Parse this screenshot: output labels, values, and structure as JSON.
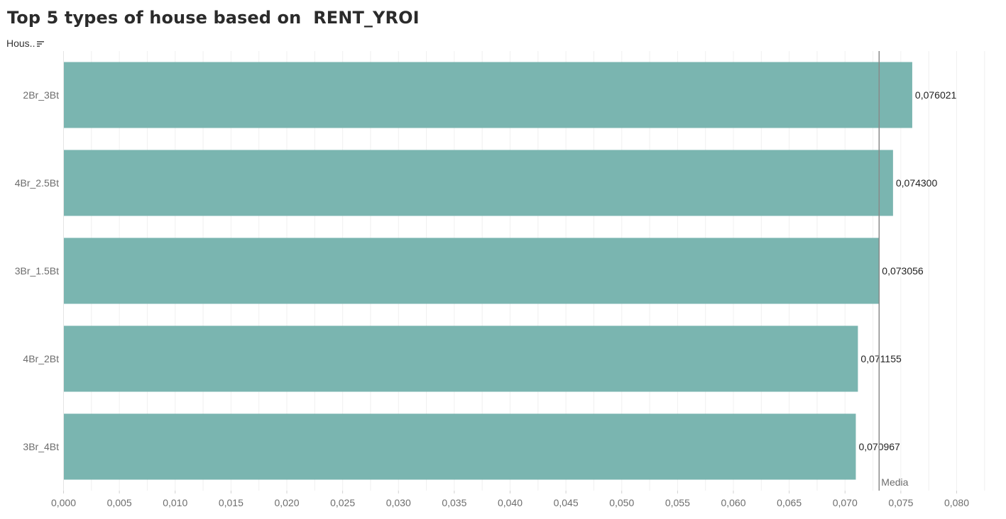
{
  "header": {
    "title": "Top 5 types of house based on  RENT_YROI",
    "field_label": "Hous.."
  },
  "chart_data": {
    "type": "bar",
    "orientation": "horizontal",
    "categories": [
      "2Br_3Bt",
      "4Br_2.5Bt",
      "3Br_1.5Bt",
      "4Br_2Bt",
      "3Br_4Bt"
    ],
    "values": [
      0.076021,
      0.0743,
      0.073056,
      0.071155,
      0.070967
    ],
    "value_labels": [
      "0,076021",
      "0,074300",
      "0,073056",
      "0,071155",
      "0,070967"
    ],
    "xlim": [
      0,
      0.082
    ],
    "xticks": [
      0,
      0.005,
      0.01,
      0.015,
      0.02,
      0.025,
      0.03,
      0.035,
      0.04,
      0.045,
      0.05,
      0.055,
      0.06,
      0.065,
      0.07,
      0.075,
      0.08
    ],
    "xtick_labels": [
      "0,000",
      "0,005",
      "0,010",
      "0,015",
      "0,020",
      "0,025",
      "0,030",
      "0,035",
      "0,040",
      "0,045",
      "0,050",
      "0,055",
      "0,060",
      "0,065",
      "0,070",
      "0,075",
      "0,080"
    ],
    "reference_line": {
      "value": 0.073056,
      "label": "Media"
    },
    "bar_color": "#7ab5b0",
    "grid": true,
    "legend": "none"
  }
}
